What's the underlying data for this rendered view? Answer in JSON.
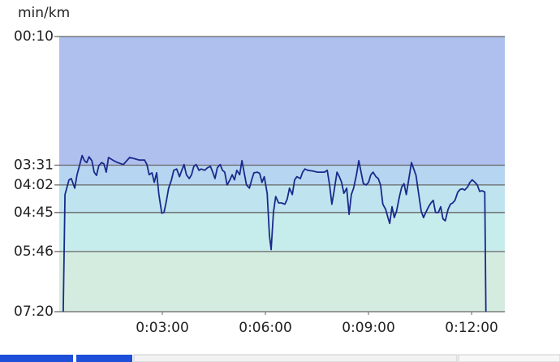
{
  "chart_data": {
    "type": "line",
    "y_label": "min/km",
    "ylim": [
      10,
      440
    ],
    "y_inverted": true,
    "yticks": [
      {
        "value": 10,
        "label": "00:10"
      },
      {
        "value": 211,
        "label": "03:31"
      },
      {
        "value": 242,
        "label": "04:02"
      },
      {
        "value": 285,
        "label": "04:45"
      },
      {
        "value": 346,
        "label": "05:46"
      },
      {
        "value": 440,
        "label": "07:20"
      }
    ],
    "xlim": [
      0,
      778
    ],
    "xticks": [
      {
        "value": 180,
        "label": "0:03:00"
      },
      {
        "value": 360,
        "label": "0:06:00"
      },
      {
        "value": 540,
        "label": "0:09:00"
      },
      {
        "value": 720,
        "label": "0:12:00"
      }
    ],
    "band_colors": [
      "#afc0ee",
      "#b6d5f0",
      "#bfe4ef",
      "#c7ecec",
      "#d4ecdf"
    ],
    "color": "#1a2a8c",
    "x": [
      7,
      10,
      17,
      21,
      27,
      31,
      35,
      40,
      44,
      48,
      52,
      57,
      61,
      65,
      69,
      74,
      78,
      82,
      86,
      95,
      102,
      112,
      118,
      123,
      132,
      140,
      149,
      153,
      157,
      162,
      166,
      170,
      174,
      179,
      183,
      187,
      191,
      196,
      200,
      205,
      210,
      214,
      218,
      222,
      227,
      231,
      235,
      239,
      244,
      248,
      254,
      259,
      264,
      268,
      272,
      276,
      281,
      285,
      289,
      293,
      298,
      302,
      306,
      310,
      315,
      319,
      323,
      327,
      332,
      336,
      340,
      346,
      350,
      354,
      358,
      363,
      367,
      370,
      374,
      378,
      383,
      388,
      394,
      398,
      402,
      407,
      411,
      415,
      421,
      425,
      429,
      434,
      442,
      451,
      458,
      463,
      468,
      472,
      476,
      480,
      485,
      489,
      493,
      497,
      502,
      506,
      510,
      514,
      519,
      523,
      527,
      531,
      536,
      540,
      544,
      548,
      553,
      557,
      561,
      565,
      570,
      574,
      577,
      581,
      585,
      589,
      594,
      598,
      602,
      606,
      611,
      615,
      619,
      623,
      627,
      632,
      636,
      640,
      645,
      649,
      653,
      657,
      662,
      666,
      670,
      674,
      679,
      683,
      687,
      691,
      696,
      700,
      704,
      708,
      713,
      717,
      721,
      725,
      730,
      734,
      738,
      743,
      745
    ],
    "values": [
      440,
      257,
      234,
      232,
      247,
      226,
      213,
      196,
      204,
      207,
      198,
      204,
      222,
      227,
      212,
      207,
      209,
      222,
      199,
      204,
      207,
      210,
      204,
      199,
      201,
      203,
      203,
      210,
      226,
      223,
      238,
      223,
      257,
      286,
      285,
      267,
      247,
      234,
      219,
      217,
      229,
      219,
      210,
      226,
      232,
      226,
      213,
      210,
      219,
      217,
      219,
      215,
      213,
      222,
      232,
      215,
      210,
      219,
      222,
      242,
      234,
      226,
      234,
      219,
      226,
      204,
      223,
      242,
      247,
      234,
      223,
      222,
      224,
      238,
      229,
      255,
      321,
      343,
      285,
      260,
      270,
      270,
      272,
      264,
      247,
      257,
      234,
      229,
      232,
      222,
      217,
      219,
      220,
      222,
      222,
      222,
      219,
      242,
      272,
      251,
      222,
      229,
      238,
      255,
      247,
      288,
      257,
      247,
      226,
      204,
      222,
      240,
      242,
      238,
      226,
      222,
      229,
      232,
      242,
      272,
      280,
      293,
      302,
      276,
      293,
      283,
      260,
      245,
      240,
      257,
      229,
      207,
      217,
      227,
      252,
      283,
      293,
      285,
      276,
      270,
      266,
      285,
      285,
      276,
      295,
      298,
      280,
      272,
      270,
      266,
      253,
      249,
      248,
      250,
      245,
      238,
      234,
      237,
      242,
      252,
      251,
      253,
      440
    ]
  }
}
